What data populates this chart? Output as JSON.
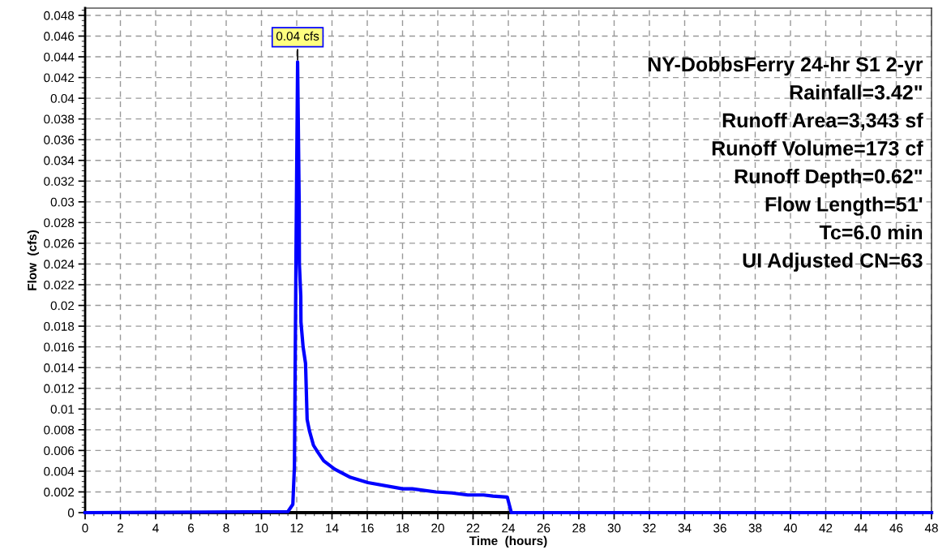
{
  "chart_data": {
    "type": "line",
    "xlabel": "Time  (hours)",
    "ylabel": "Flow  (cfs)",
    "xlim": [
      0,
      48
    ],
    "xticks": [
      0,
      2,
      4,
      6,
      8,
      10,
      12,
      14,
      16,
      18,
      20,
      22,
      24,
      26,
      28,
      30,
      32,
      34,
      36,
      38,
      40,
      42,
      44,
      46,
      48
    ],
    "ylim": [
      0,
      0.0487
    ],
    "yticks": [
      0,
      0.002,
      0.004,
      0.006,
      0.008,
      0.01,
      0.012,
      0.014,
      0.016,
      0.018,
      0.02,
      0.022,
      0.024,
      0.026,
      0.028,
      0.03,
      0.032,
      0.034,
      0.036,
      0.038,
      0.04,
      0.042,
      0.044,
      0.046,
      0.048
    ],
    "grid": true,
    "line_style": "solid",
    "marker": "none",
    "series": [
      {
        "color": "#0000ff",
        "x": [
          0,
          11.5,
          11.78,
          11.87,
          11.96,
          12.05,
          12.14,
          12.15,
          12.23,
          12.24,
          12.36,
          12.5,
          12.59,
          12.72,
          12.95,
          13.17,
          13.53,
          14.15,
          15.05,
          16.04,
          18.01,
          18.55,
          19.9,
          20.8,
          21.7,
          22.59,
          23.13,
          23.94,
          24.17,
          48
        ],
        "values": [
          0,
          0.0001,
          0.0008,
          0.0045,
          0.0253,
          0.0435,
          0.0296,
          0.024,
          0.0209,
          0.0184,
          0.016,
          0.0144,
          0.009,
          0.0079,
          0.0065,
          0.0059,
          0.005,
          0.0042,
          0.0034,
          0.0029,
          0.0023,
          0.0023,
          0.002,
          0.0019,
          0.0017,
          0.0017,
          0.0016,
          0.0015,
          0,
          0
        ]
      }
    ],
    "annotations": [
      {
        "text": "0.04 cfs",
        "x": 12.05,
        "y": 0.0435
      },
      "NY-DobbsFerry 24-hr S1 2-yr",
      "Rainfall=3.42\"",
      "Runoff Area=3,343 sf",
      "Runoff Volume=173 cf",
      "Runoff Depth=0.62\"",
      "Flow Length=51'",
      "Tc=6.0 min",
      "UI Adjusted CN=63"
    ]
  }
}
